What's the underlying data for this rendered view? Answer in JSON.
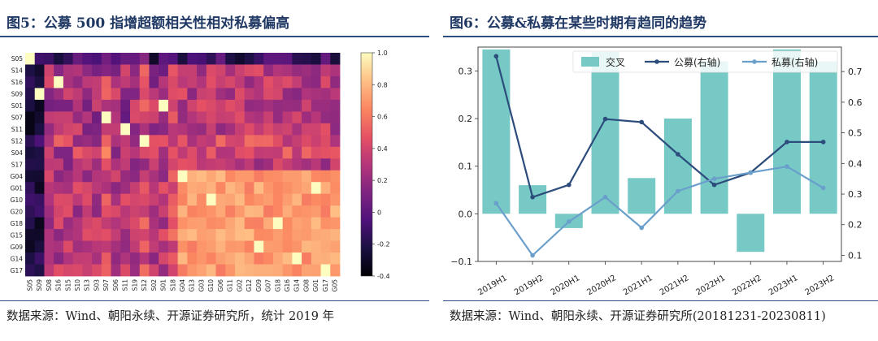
{
  "left": {
    "title": "图5：公募 500 指增超额相关性相对私募偏高",
    "source": "数据来源：Wind、朝阳永续、开源证券研究所，统计 2019 年"
  },
  "right": {
    "title": "图6：公募&私募在某些时期有趋同的趋势",
    "source": "数据来源：Wind、朝阳永续、开源证券研究所(20181231-20230811)"
  },
  "chart_data": [
    {
      "type": "heatmap",
      "title": "",
      "rows": [
        "S05",
        "S14",
        "S16",
        "S09",
        "S01",
        "S07",
        "S11",
        "S12",
        "S04",
        "S17",
        "G04",
        "G01",
        "G10",
        "G20",
        "G18",
        "G15",
        "G09",
        "G14",
        "G17"
      ],
      "cols": [
        "S05",
        "S09",
        "S08",
        "S16",
        "S15",
        "S10",
        "S13",
        "S03",
        "S07",
        "S06",
        "S11",
        "S19",
        "S12",
        "S02",
        "S01",
        "S18",
        "G04",
        "G13",
        "G03",
        "G10",
        "G06",
        "G11",
        "G02",
        "G12",
        "G09",
        "G07",
        "G18",
        "G16",
        "G14",
        "G08",
        "G01",
        "G17",
        "G05"
      ],
      "colorbar": {
        "min": -0.4,
        "max": 1.0,
        "ticks": [
          "-0.4",
          "-0.2",
          "0",
          "0.2",
          "0.4",
          "0.6",
          "0.8",
          "1.0"
        ]
      }
    },
    {
      "type": "bar",
      "categories": [
        "2019H1",
        "2019H2",
        "2020H1",
        "2020H2",
        "2021H1",
        "2021H2",
        "2022H1",
        "2022H2",
        "2023H1",
        "2023H2"
      ],
      "series": [
        {
          "name": "交叉",
          "kind": "bar",
          "axis": "left",
          "color": "#76c9c5",
          "values": [
            0.345,
            0.06,
            -0.03,
            0.34,
            0.075,
            0.2,
            0.32,
            -0.08,
            0.345,
            0.32
          ]
        },
        {
          "name": "公募(右轴)",
          "kind": "line",
          "axis": "right",
          "color": "#2c4c7c",
          "values": [
            0.75,
            0.29,
            0.33,
            0.545,
            0.535,
            0.43,
            0.33,
            0.37,
            0.47,
            0.47
          ]
        },
        {
          "name": "私募(右轴)",
          "kind": "line",
          "axis": "right",
          "color": "#6a9fcb",
          "values": [
            0.27,
            0.1,
            0.21,
            0.29,
            0.19,
            0.31,
            0.35,
            0.37,
            0.39,
            0.32
          ]
        }
      ],
      "ylim_left": [
        -0.1,
        0.35
      ],
      "ylim_right": [
        0.08,
        0.78
      ],
      "yticks_left": [
        "−0.1",
        "0.0",
        "0.1",
        "0.2",
        "0.3"
      ],
      "yticks_right": [
        "0.1",
        "0.2",
        "0.3",
        "0.4",
        "0.5",
        "0.6",
        "0.7"
      ],
      "legend": "top-right"
    }
  ]
}
